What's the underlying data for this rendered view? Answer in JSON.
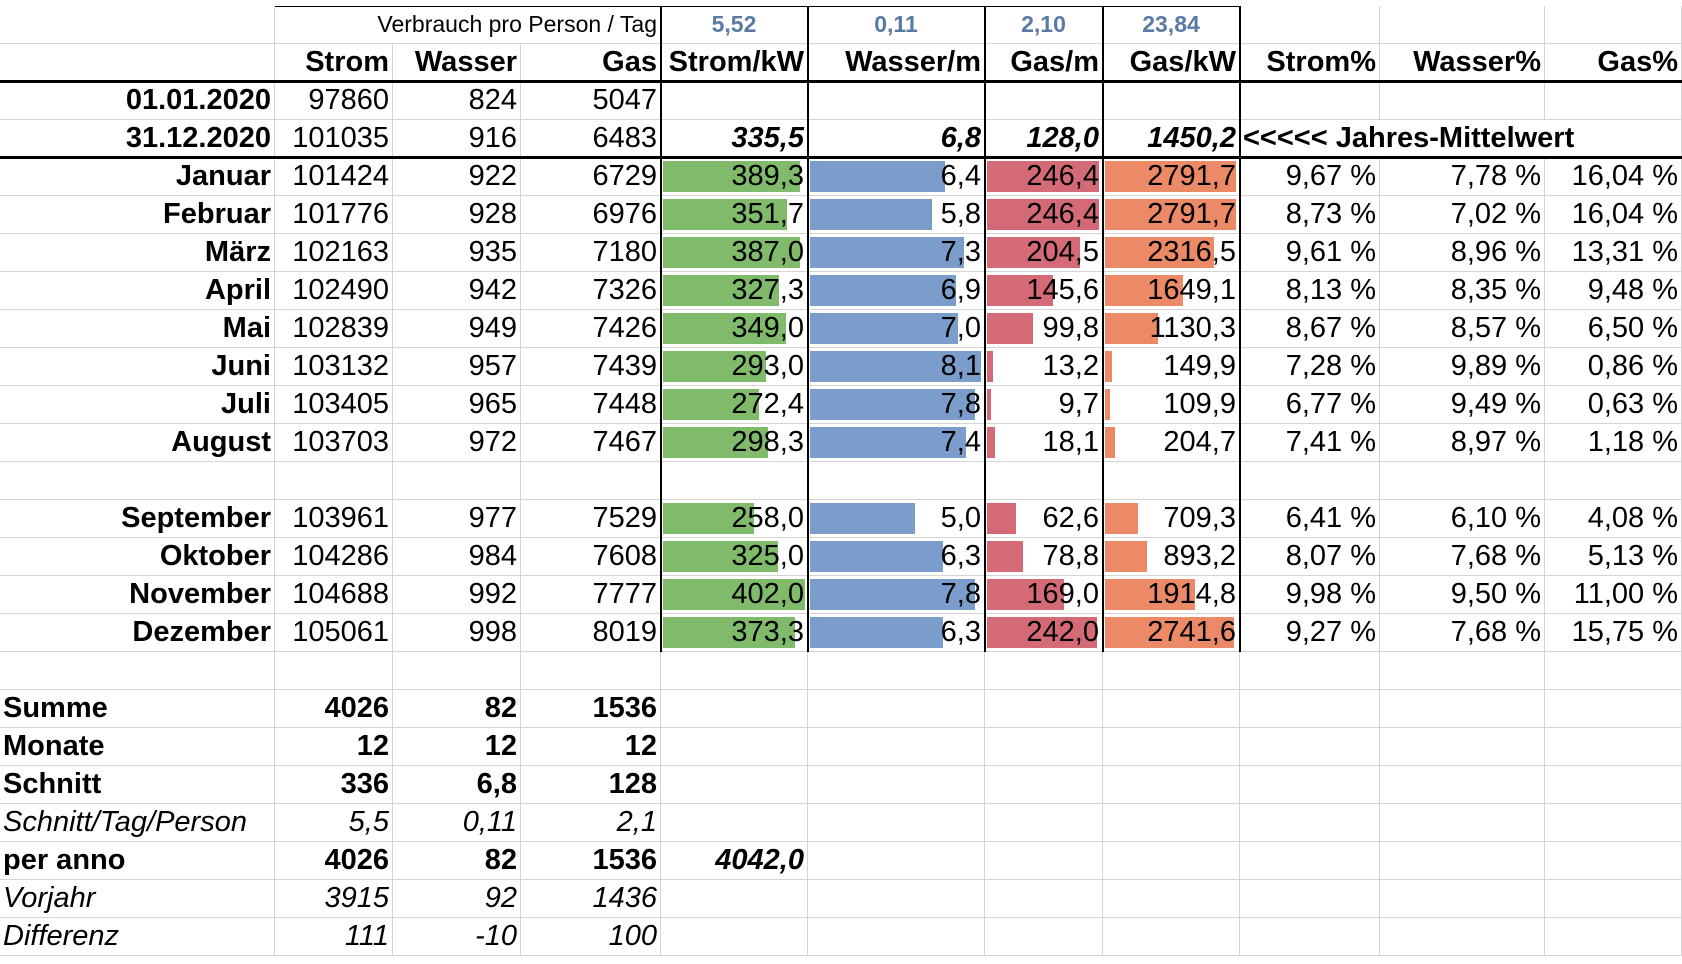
{
  "header": {
    "verbrauch_label": "Verbrauch pro Person / Tag",
    "per_person_values": [
      "5,52",
      "0,11",
      "2,10",
      "23,84"
    ],
    "columns": [
      "Strom",
      "Wasser",
      "Gas",
      "Strom/kW",
      "Wasser/m",
      "Gas/m",
      "Gas/kW",
      "Strom%",
      "Wasser%",
      "Gas%"
    ]
  },
  "readings": [
    {
      "label": "01.01.2020",
      "strom": "97860",
      "wasser": "824",
      "gas": "5047"
    },
    {
      "label": "31.12.2020",
      "strom": "101035",
      "wasser": "916",
      "gas": "6483"
    }
  ],
  "averages": {
    "strom_kw": "335,5",
    "wasser_m": "6,8",
    "gas_m": "128,0",
    "gas_kw": "1450,2",
    "note": "<<<<< Jahres-Mittelwert"
  },
  "bar_colors": {
    "strom": "#7fbb6a",
    "wasser": "#7b9dcb",
    "gas_m": "#d56a77",
    "gas_kw": "#ec8a67"
  },
  "months": [
    {
      "name": "Januar",
      "strom": "101424",
      "wasser": "922",
      "gas": "6729",
      "strom_kw": "389,3",
      "wasser_m": "6,4",
      "gas_m": "246,4",
      "gas_kw": "2791,7",
      "strom_pct": "9,67 %",
      "wasser_pct": "7,78 %",
      "gas_pct": "16,04 %"
    },
    {
      "name": "Februar",
      "strom": "101776",
      "wasser": "928",
      "gas": "6976",
      "strom_kw": "351,7",
      "wasser_m": "5,8",
      "gas_m": "246,4",
      "gas_kw": "2791,7",
      "strom_pct": "8,73 %",
      "wasser_pct": "7,02 %",
      "gas_pct": "16,04 %"
    },
    {
      "name": "März",
      "strom": "102163",
      "wasser": "935",
      "gas": "7180",
      "strom_kw": "387,0",
      "wasser_m": "7,3",
      "gas_m": "204,5",
      "gas_kw": "2316,5",
      "strom_pct": "9,61 %",
      "wasser_pct": "8,96 %",
      "gas_pct": "13,31 %"
    },
    {
      "name": "April",
      "strom": "102490",
      "wasser": "942",
      "gas": "7326",
      "strom_kw": "327,3",
      "wasser_m": "6,9",
      "gas_m": "145,6",
      "gas_kw": "1649,1",
      "strom_pct": "8,13 %",
      "wasser_pct": "8,35 %",
      "gas_pct": "9,48 %"
    },
    {
      "name": "Mai",
      "strom": "102839",
      "wasser": "949",
      "gas": "7426",
      "strom_kw": "349,0",
      "wasser_m": "7,0",
      "gas_m": "99,8",
      "gas_kw": "1130,3",
      "strom_pct": "8,67 %",
      "wasser_pct": "8,57 %",
      "gas_pct": "6,50 %"
    },
    {
      "name": "Juni",
      "strom": "103132",
      "wasser": "957",
      "gas": "7439",
      "strom_kw": "293,0",
      "wasser_m": "8,1",
      "gas_m": "13,2",
      "gas_kw": "149,9",
      "strom_pct": "7,28 %",
      "wasser_pct": "9,89 %",
      "gas_pct": "0,86 %"
    },
    {
      "name": "Juli",
      "strom": "103405",
      "wasser": "965",
      "gas": "7448",
      "strom_kw": "272,4",
      "wasser_m": "7,8",
      "gas_m": "9,7",
      "gas_kw": "109,9",
      "strom_pct": "6,77 %",
      "wasser_pct": "9,49 %",
      "gas_pct": "0,63 %"
    },
    {
      "name": "August",
      "strom": "103703",
      "wasser": "972",
      "gas": "7467",
      "strom_kw": "298,3",
      "wasser_m": "7,4",
      "gas_m": "18,1",
      "gas_kw": "204,7",
      "strom_pct": "7,41 %",
      "wasser_pct": "8,97 %",
      "gas_pct": "1,18 %"
    },
    null,
    {
      "name": "September",
      "strom": "103961",
      "wasser": "977",
      "gas": "7529",
      "strom_kw": "258,0",
      "wasser_m": "5,0",
      "gas_m": "62,6",
      "gas_kw": "709,3",
      "strom_pct": "6,41 %",
      "wasser_pct": "6,10 %",
      "gas_pct": "4,08 %"
    },
    {
      "name": "Oktober",
      "strom": "104286",
      "wasser": "984",
      "gas": "7608",
      "strom_kw": "325,0",
      "wasser_m": "6,3",
      "gas_m": "78,8",
      "gas_kw": "893,2",
      "strom_pct": "8,07 %",
      "wasser_pct": "7,68 %",
      "gas_pct": "5,13 %"
    },
    {
      "name": "November",
      "strom": "104688",
      "wasser": "992",
      "gas": "7777",
      "strom_kw": "402,0",
      "wasser_m": "7,8",
      "gas_m": "169,0",
      "gas_kw": "1914,8",
      "strom_pct": "9,98 %",
      "wasser_pct": "9,50 %",
      "gas_pct": "11,00 %"
    },
    {
      "name": "Dezember",
      "strom": "105061",
      "wasser": "998",
      "gas": "8019",
      "strom_kw": "373,3",
      "wasser_m": "6,3",
      "gas_m": "242,0",
      "gas_kw": "2741,6",
      "strom_pct": "9,27 %",
      "wasser_pct": "7,68 %",
      "gas_pct": "15,75 %"
    }
  ],
  "summary": [
    {
      "label": "Summe",
      "strom": "4026",
      "wasser": "82",
      "gas": "1536",
      "style": "b"
    },
    {
      "label": "Monate",
      "strom": "12",
      "wasser": "12",
      "gas": "12",
      "style": "b"
    },
    {
      "label": "Schnitt",
      "strom": "336",
      "wasser": "6,8",
      "gas": "128",
      "style": "b"
    },
    {
      "label": "Schnitt/Tag/Person",
      "strom": "5,5",
      "wasser": "0,11",
      "gas": "2,1",
      "style": "i"
    },
    {
      "label": "per anno",
      "strom": "4026",
      "wasser": "82",
      "gas": "1536",
      "style": "b",
      "extra": "4042,0"
    },
    {
      "label": "Vorjahr",
      "strom": "3915",
      "wasser": "92",
      "gas": "1436",
      "style": "i"
    },
    {
      "label": "Differenz",
      "strom": "111",
      "wasser": "-10",
      "gas": "100",
      "style": "i"
    }
  ]
}
